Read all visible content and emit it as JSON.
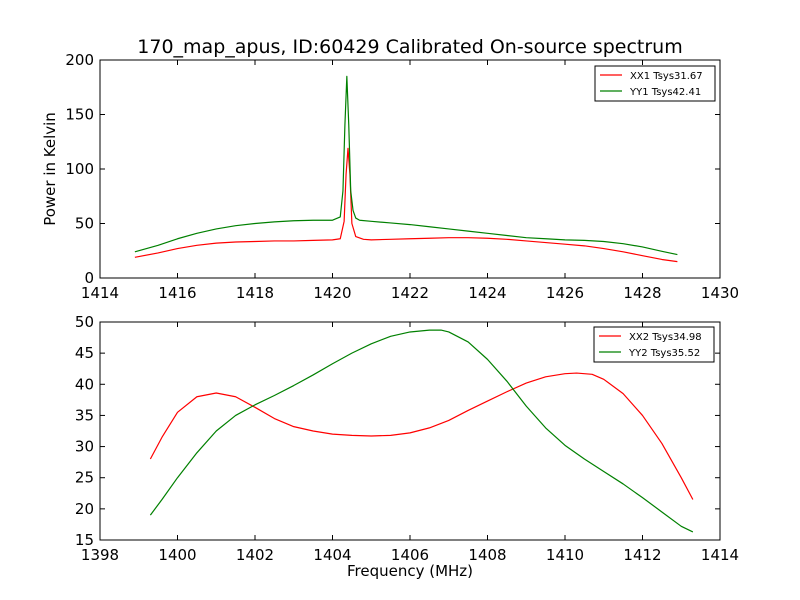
{
  "title": "170_map_apus, ID:60429 Calibrated On-source spectrum",
  "chart_data": [
    {
      "type": "line",
      "ylabel": "Power in Kelvin",
      "xlabel": "",
      "xlim": [
        1414,
        1430
      ],
      "ylim": [
        0,
        200
      ],
      "xticks": [
        1414,
        1416,
        1418,
        1420,
        1422,
        1424,
        1426,
        1428,
        1430
      ],
      "yticks": [
        0,
        50,
        100,
        150,
        200
      ],
      "legend_position": "top-right",
      "series": [
        {
          "name": "XX1 Tsys31.67",
          "color": "#ff0000",
          "x": [
            1414.9,
            1415.5,
            1416.0,
            1416.5,
            1417.0,
            1417.5,
            1418.0,
            1418.5,
            1419.0,
            1419.5,
            1420.0,
            1420.2,
            1420.3,
            1420.35,
            1420.4,
            1420.45,
            1420.5,
            1420.6,
            1420.8,
            1421.0,
            1421.5,
            1422.0,
            1422.5,
            1423.0,
            1423.5,
            1424.0,
            1424.5,
            1425.0,
            1425.5,
            1426.0,
            1426.5,
            1427.0,
            1427.5,
            1428.0,
            1428.5,
            1428.9
          ],
          "y": [
            19,
            23,
            27,
            30,
            32,
            33,
            33.5,
            34,
            34,
            34.5,
            35,
            36,
            52,
            95,
            119,
            95,
            50,
            38,
            35.5,
            35,
            35.5,
            36,
            36.5,
            37,
            37,
            36.5,
            35.5,
            34,
            32.5,
            31,
            29.5,
            27,
            24,
            20.5,
            17,
            15
          ]
        },
        {
          "name": "YY1 Tsys42.41",
          "color": "#008000",
          "x": [
            1414.9,
            1415.5,
            1416.0,
            1416.5,
            1417.0,
            1417.5,
            1418.0,
            1418.5,
            1419.0,
            1419.5,
            1420.0,
            1420.2,
            1420.27,
            1420.32,
            1420.37,
            1420.42,
            1420.47,
            1420.53,
            1420.6,
            1420.7,
            1421.0,
            1421.5,
            1422.0,
            1422.5,
            1423.0,
            1423.5,
            1424.0,
            1424.5,
            1425.0,
            1425.5,
            1426.0,
            1426.5,
            1427.0,
            1427.5,
            1428.0,
            1428.5,
            1428.9
          ],
          "y": [
            24,
            30,
            36,
            41,
            45,
            48,
            50,
            51.5,
            52.5,
            53,
            53,
            56,
            80,
            140,
            185,
            140,
            80,
            62,
            55,
            53,
            52,
            50.5,
            49,
            47,
            45,
            43,
            41,
            39,
            37,
            36,
            35,
            34.5,
            33.5,
            31.5,
            28.5,
            24.5,
            21.5
          ]
        }
      ]
    },
    {
      "type": "line",
      "ylabel": "",
      "xlabel": "Frequency (MHz)",
      "xlim": [
        1398,
        1414
      ],
      "ylim": [
        15,
        50
      ],
      "xticks": [
        1398,
        1400,
        1402,
        1404,
        1406,
        1408,
        1410,
        1412,
        1414
      ],
      "yticks": [
        15,
        20,
        25,
        30,
        35,
        40,
        45,
        50
      ],
      "legend_position": "top-right",
      "series": [
        {
          "name": "XX2 Tsys34.98",
          "color": "#ff0000",
          "x": [
            1399.3,
            1399.6,
            1400.0,
            1400.5,
            1401.0,
            1401.5,
            1402.0,
            1402.5,
            1403.0,
            1403.5,
            1404.0,
            1404.5,
            1405.0,
            1405.5,
            1406.0,
            1406.5,
            1407.0,
            1407.5,
            1408.0,
            1408.5,
            1409.0,
            1409.5,
            1410.0,
            1410.3,
            1410.7,
            1411.0,
            1411.5,
            1412.0,
            1412.5,
            1413.0,
            1413.3
          ],
          "y": [
            28,
            31.5,
            35.5,
            38,
            38.6,
            38,
            36.3,
            34.5,
            33.2,
            32.5,
            32,
            31.8,
            31.7,
            31.8,
            32.2,
            33,
            34.2,
            35.8,
            37.3,
            38.8,
            40.2,
            41.2,
            41.7,
            41.8,
            41.6,
            40.8,
            38.5,
            35,
            30.5,
            25,
            21.5
          ]
        },
        {
          "name": "YY2 Tsys35.52",
          "color": "#008000",
          "x": [
            1399.3,
            1399.6,
            1400.0,
            1400.5,
            1401.0,
            1401.5,
            1402.0,
            1402.5,
            1403.0,
            1403.5,
            1404.0,
            1404.5,
            1405.0,
            1405.5,
            1406.0,
            1406.5,
            1406.8,
            1407.0,
            1407.5,
            1408.0,
            1408.5,
            1409.0,
            1409.5,
            1410.0,
            1410.5,
            1411.0,
            1411.5,
            1412.0,
            1412.5,
            1413.0,
            1413.3
          ],
          "y": [
            19,
            21.5,
            25,
            29,
            32.5,
            35,
            36.7,
            38.2,
            39.8,
            41.5,
            43.3,
            45,
            46.5,
            47.7,
            48.4,
            48.7,
            48.7,
            48.4,
            46.8,
            44,
            40.5,
            36.5,
            33,
            30.2,
            28,
            26,
            24,
            21.8,
            19.5,
            17.2,
            16.3
          ]
        }
      ]
    }
  ]
}
